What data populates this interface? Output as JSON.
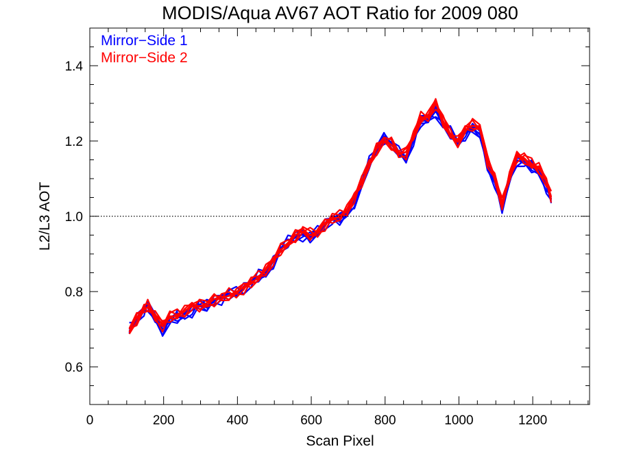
{
  "chart_data": {
    "type": "line",
    "title": "MODIS/Aqua AV67 AOT Ratio for 2009 080",
    "xlabel": "Scan Pixel",
    "ylabel": "L2/L3 AOT",
    "xlim": [
      0,
      1354
    ],
    "ylim": [
      0.5,
      1.5
    ],
    "x_ticks": [
      0,
      200,
      400,
      600,
      800,
      1000,
      1200
    ],
    "x_tick_labels": [
      "0",
      "200",
      "400",
      "600",
      "800",
      "1000",
      "1200"
    ],
    "y_ticks": [
      0.6,
      0.8,
      1.0,
      1.2,
      1.4
    ],
    "y_tick_labels": [
      "0.6",
      "0.8",
      "1.0",
      "1.2",
      "1.4"
    ],
    "grid": false,
    "reference_line": {
      "y": 1.0,
      "style": "dotted"
    },
    "legend_position": "top-left",
    "x": [
      107,
      127,
      147,
      157,
      177,
      197,
      217,
      237,
      257,
      277,
      297,
      317,
      337,
      357,
      377,
      397,
      417,
      437,
      457,
      477,
      497,
      517,
      537,
      557,
      577,
      597,
      617,
      637,
      657,
      677,
      697,
      717,
      737,
      757,
      777,
      797,
      817,
      837,
      857,
      877,
      897,
      917,
      937,
      957,
      977,
      997,
      1017,
      1037,
      1057,
      1077,
      1097,
      1117,
      1137,
      1157,
      1177,
      1197,
      1217,
      1237,
      1250
    ],
    "series": [
      {
        "name": "Mirror−Side 1",
        "color": "#0000ff",
        "values": [
          0.7,
          0.73,
          0.75,
          0.76,
          0.73,
          0.7,
          0.72,
          0.73,
          0.74,
          0.75,
          0.76,
          0.76,
          0.78,
          0.78,
          0.79,
          0.8,
          0.81,
          0.82,
          0.84,
          0.85,
          0.88,
          0.91,
          0.93,
          0.95,
          0.95,
          0.94,
          0.96,
          0.98,
          0.99,
          0.99,
          1.01,
          1.04,
          1.08,
          1.14,
          1.18,
          1.21,
          1.19,
          1.17,
          1.16,
          1.2,
          1.25,
          1.26,
          1.28,
          1.24,
          1.22,
          1.2,
          1.22,
          1.23,
          1.22,
          1.14,
          1.09,
          1.02,
          1.1,
          1.15,
          1.14,
          1.13,
          1.12,
          1.08,
          1.04
        ]
      },
      {
        "name": "Mirror−Side 2",
        "color": "#ff0000",
        "values": [
          0.7,
          0.73,
          0.75,
          0.76,
          0.74,
          0.71,
          0.73,
          0.74,
          0.75,
          0.76,
          0.76,
          0.77,
          0.78,
          0.78,
          0.79,
          0.8,
          0.81,
          0.82,
          0.84,
          0.86,
          0.88,
          0.91,
          0.93,
          0.95,
          0.96,
          0.95,
          0.96,
          0.98,
          0.99,
          1.0,
          1.02,
          1.05,
          1.09,
          1.14,
          1.18,
          1.2,
          1.19,
          1.17,
          1.17,
          1.21,
          1.26,
          1.27,
          1.3,
          1.25,
          1.22,
          1.2,
          1.23,
          1.24,
          1.24,
          1.15,
          1.1,
          1.03,
          1.11,
          1.16,
          1.15,
          1.14,
          1.13,
          1.09,
          1.05
        ]
      }
    ]
  }
}
